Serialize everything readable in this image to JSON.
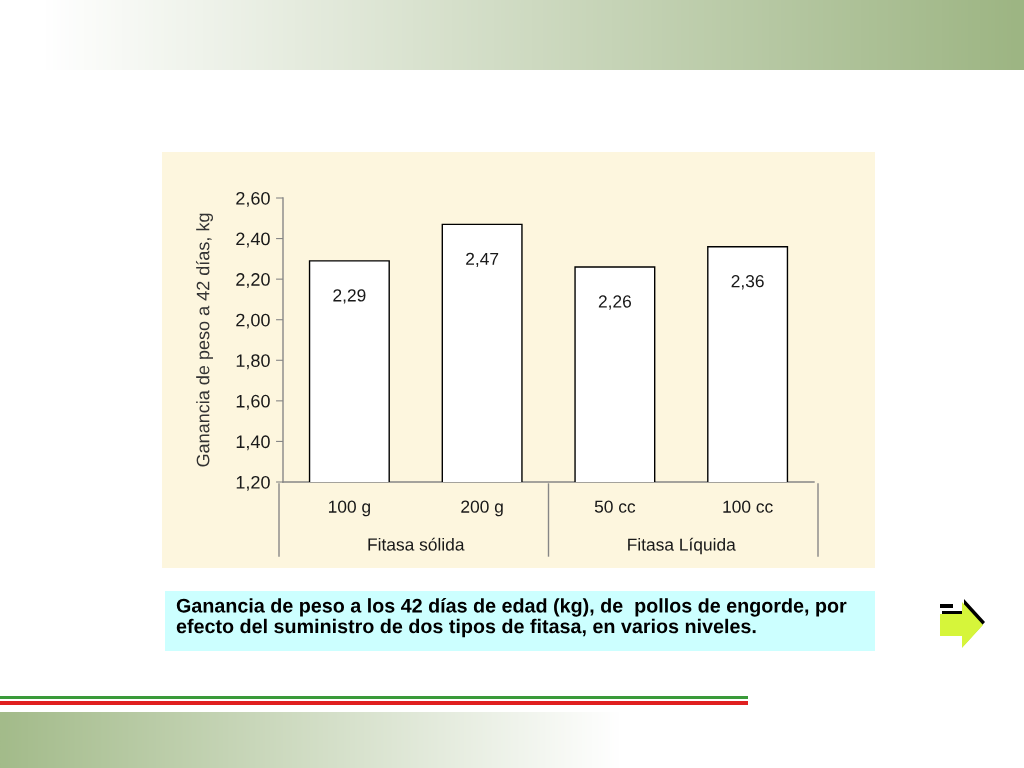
{
  "chart_data": {
    "type": "bar",
    "ylabel": "Ganancia de peso a 42 días, kg",
    "categories": [
      "100 g",
      "200 g",
      "50 cc",
      "100 cc"
    ],
    "values": [
      2.29,
      2.47,
      2.26,
      2.36
    ],
    "color": "#ffffff",
    "value_labels": [
      "2,29",
      "2,47",
      "2,26",
      "2,36"
    ],
    "ylim": [
      1.2,
      2.6
    ],
    "yticks": [
      {
        "value": 1.2,
        "label": "1,20"
      },
      {
        "value": 1.4,
        "label": "1,40"
      },
      {
        "value": 1.6,
        "label": "1,60"
      },
      {
        "value": 1.8,
        "label": "1,80"
      },
      {
        "value": 2.0,
        "label": "2,00"
      },
      {
        "value": 2.2,
        "label": "2,20"
      },
      {
        "value": 2.4,
        "label": "2,40"
      },
      {
        "value": 2.6,
        "label": "2,60"
      }
    ],
    "annotations": [
      "Fitasa sólida",
      "Fitasa Líquida",
      "Ganancia de peso a los 42 días de edad (kg), de  pollos de engorde, por efecto del suministro de dos tipos de fitasa, en varios niveles."
    ]
  }
}
